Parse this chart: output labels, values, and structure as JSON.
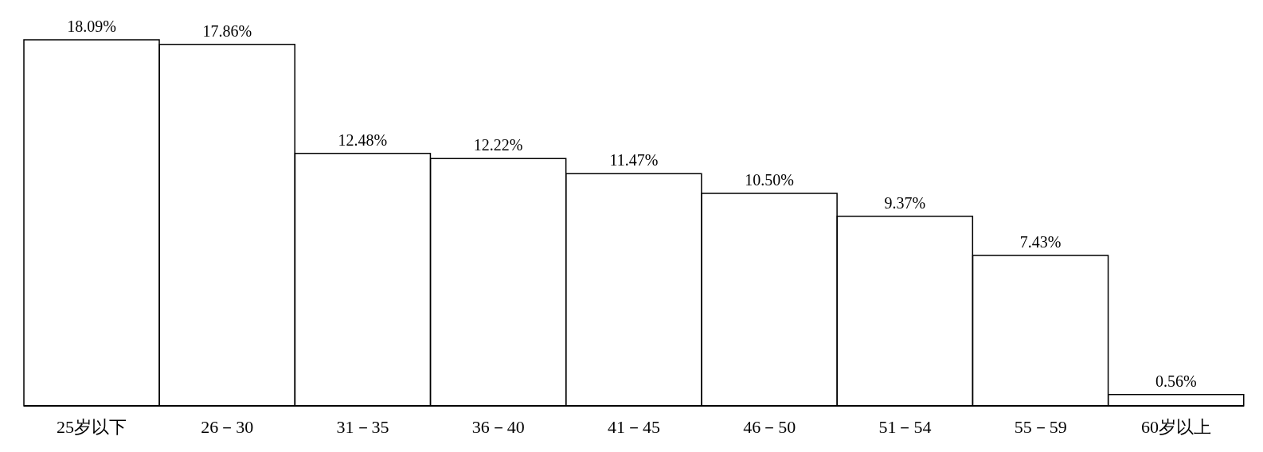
{
  "chart_data": {
    "type": "bar",
    "categories": [
      "25岁以下",
      "26－30",
      "31－35",
      "36－40",
      "41－45",
      "46－50",
      "51－54",
      "55－59",
      "60岁以上"
    ],
    "values": [
      18.09,
      17.86,
      12.48,
      12.22,
      11.47,
      10.5,
      9.37,
      7.43,
      0.56
    ],
    "value_labels": [
      "18.09%",
      "17.86%",
      "12.48%",
      "12.22%",
      "11.47%",
      "10.50%",
      "9.37%",
      "7.43%",
      "0.56%"
    ],
    "color": "#ffffff",
    "grid": false,
    "legend": false
  }
}
